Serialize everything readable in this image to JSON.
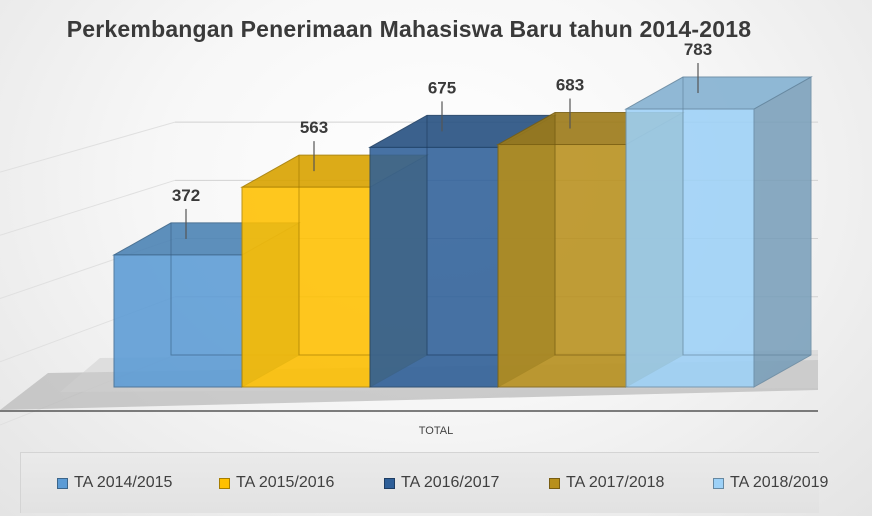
{
  "chart_data": {
    "type": "bar",
    "title": "Perkembangan Penerimaan Mahasiswa Baru tahun 2014-2018",
    "xlabel": "TOTAL",
    "ylabel": "",
    "categories": [
      "TOTAL"
    ],
    "ylim": [
      0,
      800
    ],
    "grid": true,
    "legend_position": "bottom",
    "series": [
      {
        "name": "TA 2014/2015",
        "values": [
          372
        ],
        "color": "#5b9bd5"
      },
      {
        "name": "TA 2015/2016",
        "values": [
          563
        ],
        "color": "#ffc000"
      },
      {
        "name": "TA 2016/2017",
        "values": [
          675
        ],
        "color": "#2e5f98"
      },
      {
        "name": "TA 2017/2018",
        "values": [
          683
        ],
        "color": "#b8901c"
      },
      {
        "name": "TA 2018/2019",
        "values": [
          783
        ],
        "color": "#9dd1f7"
      }
    ]
  }
}
